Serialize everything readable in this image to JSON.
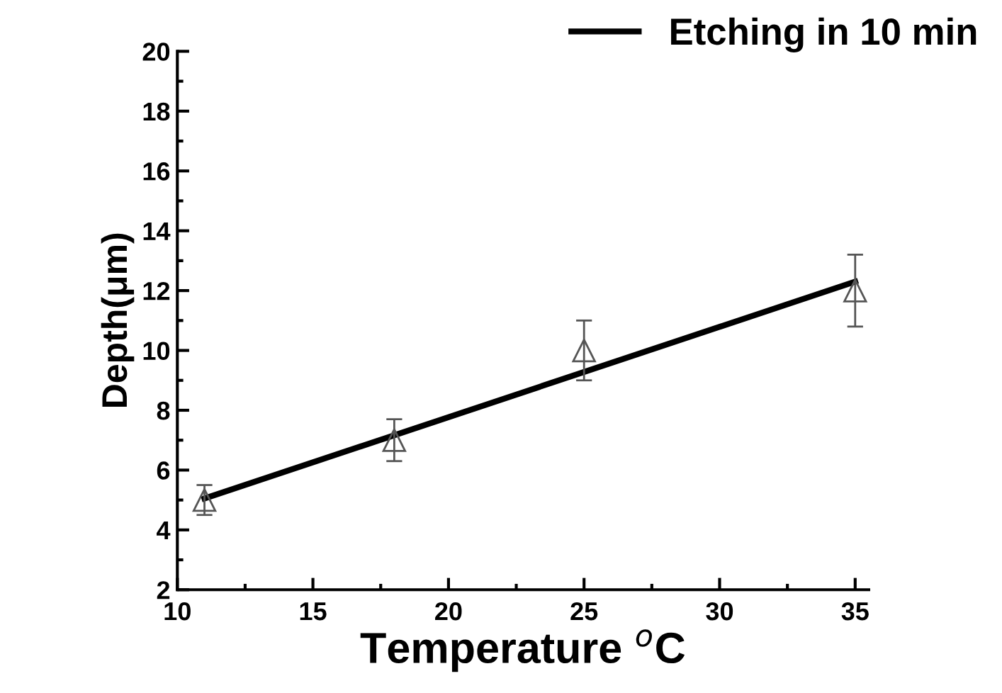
{
  "chart_data": {
    "type": "scatter",
    "xlabel": "Temperature $^{o}$C",
    "ylabel": "Depth(μm)",
    "xlim": [
      10,
      35.5
    ],
    "ylim": [
      2,
      20
    ],
    "xticks": [
      10,
      15,
      20,
      25,
      30,
      35
    ],
    "yticks": [
      2,
      4,
      6,
      8,
      10,
      12,
      14,
      16,
      18,
      20
    ],
    "grid": false,
    "legend": "top right",
    "x": [
      11,
      18,
      25,
      35
    ],
    "series": [
      {
        "color": "#555555",
        "marker": "triangle",
        "values": [
          5,
          7,
          10,
          12
        ],
        "errors": [
          0.5,
          0.7,
          1.0,
          1.2
        ]
      },
      {
        "type": "line",
        "name": "Etching in 10 min",
        "color": "#000000",
        "marker": "none",
        "x": [
          11,
          35
        ],
        "values": [
          5.05,
          12.3
        ]
      }
    ]
  }
}
